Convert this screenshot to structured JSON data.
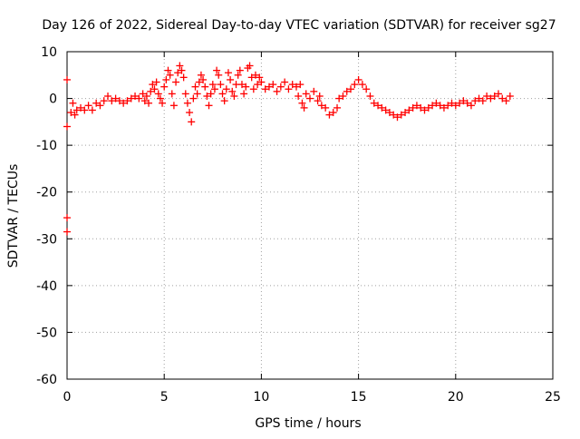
{
  "chart_data": {
    "type": "scatter",
    "title": "Day 126 of 2022, Sidereal Day-to-day VTEC variation (SDTVAR) for receiver sg27",
    "xlabel": "GPS time / hours",
    "ylabel": "SDTVAR / TECUs",
    "xlim": [
      0,
      25
    ],
    "ylim": [
      -60,
      10
    ],
    "xticks": [
      0,
      5,
      10,
      15,
      20,
      25
    ],
    "yticks": [
      10,
      0,
      -10,
      -20,
      -30,
      -40,
      -50,
      -60
    ],
    "xtick_labels": [
      "0",
      "5",
      "10",
      "15",
      "20",
      "25"
    ],
    "ytick_labels": [
      "10",
      "0",
      "-10",
      "-20",
      "-30",
      "-40",
      "-50",
      "-60"
    ],
    "grid": true,
    "marker": "plus",
    "color": "#ff0000",
    "series": [
      {
        "name": "SDTVAR",
        "points": [
          [
            0.0,
            4.0
          ],
          [
            0.0,
            -6.0
          ],
          [
            0.0,
            -25.5
          ],
          [
            0.0,
            -28.5
          ],
          [
            0.2,
            -3.0
          ],
          [
            0.3,
            -1.0
          ],
          [
            0.4,
            -3.5
          ],
          [
            0.5,
            -2.5
          ],
          [
            0.7,
            -2.0
          ],
          [
            0.9,
            -2.5
          ],
          [
            1.1,
            -1.5
          ],
          [
            1.3,
            -2.5
          ],
          [
            1.5,
            -1.0
          ],
          [
            1.7,
            -1.5
          ],
          [
            1.9,
            -0.5
          ],
          [
            2.1,
            0.5
          ],
          [
            2.3,
            -0.5
          ],
          [
            2.5,
            0.0
          ],
          [
            2.7,
            -0.5
          ],
          [
            2.9,
            -1.0
          ],
          [
            3.1,
            -0.5
          ],
          [
            3.3,
            0.0
          ],
          [
            3.5,
            0.5
          ],
          [
            3.7,
            0.0
          ],
          [
            3.9,
            1.0
          ],
          [
            4.0,
            -0.5
          ],
          [
            4.1,
            0.5
          ],
          [
            4.2,
            -1.0
          ],
          [
            4.3,
            1.5
          ],
          [
            4.4,
            3.0
          ],
          [
            4.5,
            2.0
          ],
          [
            4.6,
            3.5
          ],
          [
            4.7,
            1.0
          ],
          [
            4.8,
            0.0
          ],
          [
            4.9,
            -1.0
          ],
          [
            5.0,
            2.5
          ],
          [
            5.1,
            4.0
          ],
          [
            5.2,
            6.0
          ],
          [
            5.3,
            5.0
          ],
          [
            5.4,
            1.0
          ],
          [
            5.5,
            -1.5
          ],
          [
            5.6,
            3.5
          ],
          [
            5.7,
            5.5
          ],
          [
            5.8,
            7.0
          ],
          [
            5.9,
            6.0
          ],
          [
            6.0,
            4.5
          ],
          [
            6.1,
            1.0
          ],
          [
            6.2,
            -1.0
          ],
          [
            6.3,
            -3.0
          ],
          [
            6.4,
            -5.0
          ],
          [
            6.5,
            0.0
          ],
          [
            6.6,
            2.5
          ],
          [
            6.7,
            1.0
          ],
          [
            6.8,
            3.5
          ],
          [
            6.9,
            5.0
          ],
          [
            7.0,
            4.0
          ],
          [
            7.1,
            2.5
          ],
          [
            7.2,
            0.5
          ],
          [
            7.3,
            -1.5
          ],
          [
            7.4,
            1.0
          ],
          [
            7.5,
            3.0
          ],
          [
            7.6,
            2.0
          ],
          [
            7.7,
            6.0
          ],
          [
            7.8,
            5.0
          ],
          [
            7.9,
            3.0
          ],
          [
            8.0,
            1.0
          ],
          [
            8.1,
            -0.5
          ],
          [
            8.2,
            2.0
          ],
          [
            8.3,
            5.5
          ],
          [
            8.4,
            4.0
          ],
          [
            8.5,
            1.5
          ],
          [
            8.6,
            0.5
          ],
          [
            8.7,
            3.0
          ],
          [
            8.8,
            5.0
          ],
          [
            8.9,
            6.0
          ],
          [
            9.0,
            3.0
          ],
          [
            9.1,
            1.0
          ],
          [
            9.2,
            2.5
          ],
          [
            9.3,
            6.5
          ],
          [
            9.4,
            7.0
          ],
          [
            9.5,
            4.5
          ],
          [
            9.6,
            2.0
          ],
          [
            9.7,
            5.0
          ],
          [
            9.8,
            3.0
          ],
          [
            9.9,
            4.5
          ],
          [
            10.0,
            3.5
          ],
          [
            10.2,
            2.0
          ],
          [
            10.4,
            2.5
          ],
          [
            10.6,
            3.0
          ],
          [
            10.8,
            1.5
          ],
          [
            11.0,
            2.5
          ],
          [
            11.2,
            3.5
          ],
          [
            11.4,
            2.0
          ],
          [
            11.6,
            3.0
          ],
          [
            11.8,
            2.5
          ],
          [
            11.9,
            0.5
          ],
          [
            12.0,
            3.0
          ],
          [
            12.1,
            -1.0
          ],
          [
            12.2,
            -2.0
          ],
          [
            12.3,
            1.0
          ],
          [
            12.5,
            0.0
          ],
          [
            12.7,
            1.5
          ],
          [
            12.9,
            -0.5
          ],
          [
            13.0,
            0.5
          ],
          [
            13.1,
            -1.5
          ],
          [
            13.3,
            -2.0
          ],
          [
            13.5,
            -3.5
          ],
          [
            13.7,
            -3.0
          ],
          [
            13.9,
            -2.0
          ],
          [
            14.0,
            0.0
          ],
          [
            14.2,
            0.5
          ],
          [
            14.4,
            1.5
          ],
          [
            14.6,
            2.0
          ],
          [
            14.8,
            3.0
          ],
          [
            15.0,
            4.0
          ],
          [
            15.2,
            3.0
          ],
          [
            15.4,
            2.0
          ],
          [
            15.6,
            0.5
          ],
          [
            15.8,
            -1.0
          ],
          [
            16.0,
            -1.5
          ],
          [
            16.2,
            -2.0
          ],
          [
            16.4,
            -2.5
          ],
          [
            16.6,
            -3.0
          ],
          [
            16.8,
            -3.5
          ],
          [
            17.0,
            -4.0
          ],
          [
            17.2,
            -3.5
          ],
          [
            17.4,
            -3.0
          ],
          [
            17.6,
            -2.5
          ],
          [
            17.8,
            -2.0
          ],
          [
            18.0,
            -1.5
          ],
          [
            18.2,
            -2.0
          ],
          [
            18.4,
            -2.5
          ],
          [
            18.6,
            -2.0
          ],
          [
            18.8,
            -1.5
          ],
          [
            19.0,
            -1.0
          ],
          [
            19.2,
            -1.5
          ],
          [
            19.4,
            -2.0
          ],
          [
            19.6,
            -1.5
          ],
          [
            19.8,
            -1.0
          ],
          [
            20.0,
            -1.5
          ],
          [
            20.2,
            -1.0
          ],
          [
            20.4,
            -0.5
          ],
          [
            20.6,
            -1.0
          ],
          [
            20.8,
            -1.5
          ],
          [
            21.0,
            -0.5
          ],
          [
            21.2,
            0.0
          ],
          [
            21.4,
            -0.5
          ],
          [
            21.6,
            0.5
          ],
          [
            21.8,
            0.0
          ],
          [
            22.0,
            0.5
          ],
          [
            22.2,
            1.0
          ],
          [
            22.4,
            0.0
          ],
          [
            22.6,
            -0.5
          ],
          [
            22.8,
            0.5
          ]
        ]
      }
    ]
  }
}
